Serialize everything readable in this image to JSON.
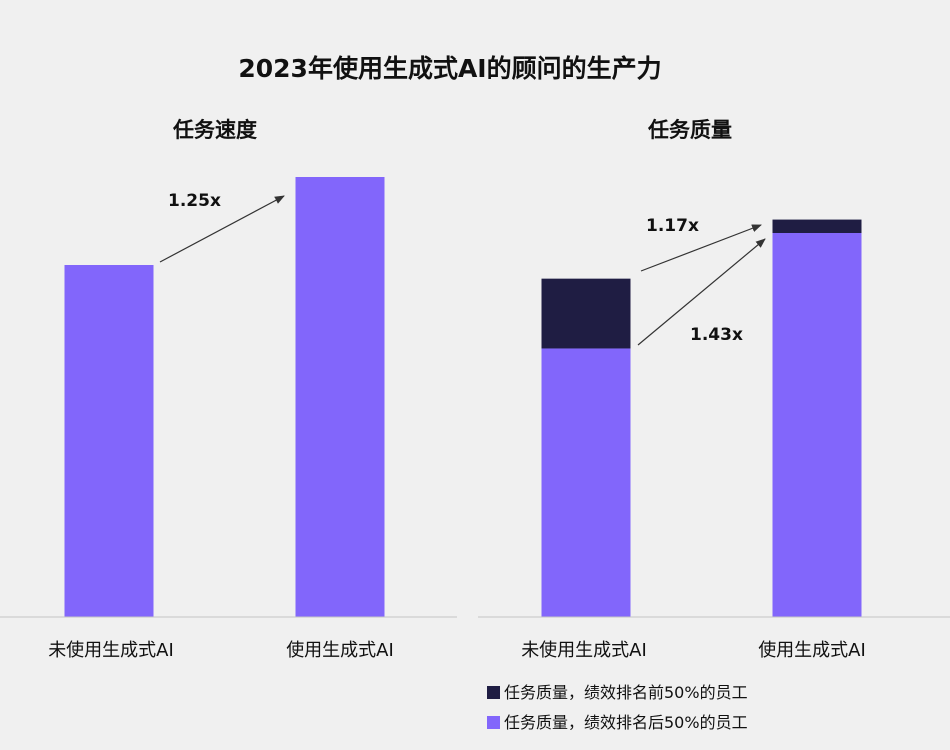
{
  "title": "2023年使用生成式AI的顾问的生产力",
  "colors": {
    "background": "#f0f0f0",
    "bar_light": "#8266fb",
    "bar_dark": "#1f1d43",
    "arrow": "#333333",
    "text": "#111111"
  },
  "chart_data": [
    {
      "type": "bar",
      "title": "任务速度",
      "categories": [
        "未使用生成式AI",
        "使用生成式AI"
      ],
      "values": [
        1.0,
        1.25
      ],
      "ylim": [
        0,
        1.25
      ],
      "annotations": [
        {
          "label": "1.25x",
          "from": "未使用生成式AI",
          "to": "使用生成式AI"
        }
      ]
    },
    {
      "type": "bar",
      "stacked": true,
      "title": "任务质量",
      "categories": [
        "未使用生成式AI",
        "使用生成式AI"
      ],
      "series": [
        {
          "name": "任务质量，绩效排名后50%的员工",
          "color": "#8266fb",
          "values": [
            1.0,
            1.43
          ]
        },
        {
          "name": "任务质量，绩效排名前50%的员工",
          "color": "#1f1d43",
          "values": [
            0.26,
            0.05
          ]
        }
      ],
      "ylim": [
        0,
        1.48
      ],
      "annotations": [
        {
          "label": "1.17x",
          "target": "top-performers"
        },
        {
          "label": "1.43x",
          "target": "bottom-performers"
        }
      ],
      "legend": {
        "position": "bottom",
        "items": [
          {
            "label": "任务质量，绩效排名前50%的员工",
            "color": "#1f1d43"
          },
          {
            "label": "任务质量，绩效排名后50%的员工",
            "color": "#8266fb"
          }
        ]
      }
    }
  ]
}
